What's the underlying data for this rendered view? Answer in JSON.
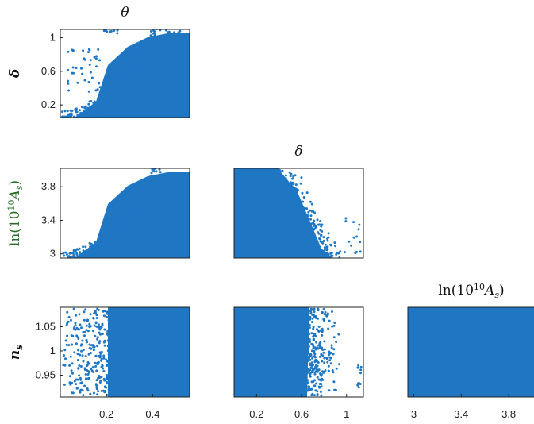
{
  "chart_data": {
    "type": "scatter",
    "color": "#1f77c4",
    "panels": [
      {
        "id": "theta-delta",
        "title": "θ",
        "xlim": [
          0.0,
          0.56
        ],
        "ylim": [
          0.05,
          1.1
        ],
        "yticks": [
          {
            "v": 0.2,
            "label": "0.2"
          },
          {
            "v": 0.6,
            "label": "0.6"
          },
          {
            "v": 1.0,
            "label": "1"
          }
        ],
        "xticks": [],
        "ylabel": "δ",
        "ylabel_style": "bold-italic",
        "pattern": "wedge-up"
      },
      {
        "id": "theta-lnAs",
        "title": "",
        "xlim": [
          0.0,
          0.56
        ],
        "ylim": [
          2.95,
          4.02
        ],
        "yticks": [
          {
            "v": 3.0,
            "label": "3"
          },
          {
            "v": 3.4,
            "label": "3.4"
          },
          {
            "v": 3.8,
            "label": "3.8"
          }
        ],
        "xticks": [],
        "ylabel": "ln(10¹⁰A_s)",
        "ylabel_style": "math",
        "pattern": "wedge-up"
      },
      {
        "id": "delta-lnAs",
        "title": "δ",
        "xlim": [
          0.0,
          1.15
        ],
        "ylim": [
          2.95,
          4.02
        ],
        "yticks": [],
        "xticks": [],
        "ylabel": "",
        "pattern": "wedge-down"
      },
      {
        "id": "theta-ns",
        "title": "",
        "xlim": [
          0.0,
          0.56
        ],
        "ylim": [
          0.905,
          1.09
        ],
        "yticks": [
          {
            "v": 0.95,
            "label": "0.95"
          },
          {
            "v": 1.0,
            "label": "1"
          },
          {
            "v": 1.05,
            "label": "1.05"
          }
        ],
        "xticks": [
          {
            "v": 0.2,
            "label": "0.2"
          },
          {
            "v": 0.4,
            "label": "0.4"
          }
        ],
        "ylabel": "n_s",
        "ylabel_style": "bold-italic",
        "pattern": "theta-cut"
      },
      {
        "id": "delta-ns",
        "title": "",
        "xlim": [
          0.0,
          1.15
        ],
        "ylim": [
          0.905,
          1.09
        ],
        "yticks": [],
        "xticks": [
          {
            "v": 0.2,
            "label": "0.2"
          },
          {
            "v": 0.6,
            "label": "0.6"
          },
          {
            "v": 1.0,
            "label": "1"
          }
        ],
        "ylabel": "",
        "pattern": "delta-cut"
      },
      {
        "id": "lnAs-ns",
        "title": "ln(10¹⁰A_s)",
        "xlim": [
          2.95,
          4.02
        ],
        "ylim": [
          0.905,
          1.09
        ],
        "yticks": [],
        "xticks": [
          {
            "v": 3.0,
            "label": "3"
          },
          {
            "v": 3.4,
            "label": "3.4"
          },
          {
            "v": 3.8,
            "label": "3.8"
          }
        ],
        "ylabel": "",
        "pattern": "full"
      }
    ]
  }
}
